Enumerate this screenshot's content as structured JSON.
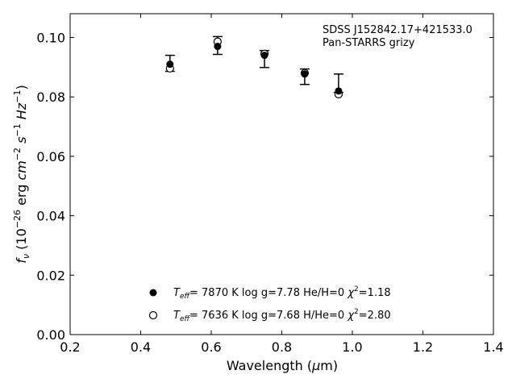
{
  "chart_data": {
    "type": "scatter",
    "xlabel": "Wavelength (μm)",
    "ylabel": "f_ν (10^-26 erg cm^-2 s^-1 Hz^-1)",
    "xlim": [
      0.2,
      1.4
    ],
    "ylim": [
      0.0,
      0.108
    ],
    "xticks": [
      "0.2",
      "0.4",
      "0.6",
      "0.8",
      "1.0",
      "1.2",
      "1.4"
    ],
    "yticks": [
      "0.00",
      "0.02",
      "0.04",
      "0.06",
      "0.08",
      "0.10"
    ],
    "grid": false,
    "annotation": [
      "SDSS J152842.17+421533.0",
      "Pan-STARRS grizy"
    ],
    "observed": {
      "x": [
        0.483,
        0.618,
        0.751,
        0.865,
        0.961
      ],
      "y_upper": [
        0.094,
        0.1003,
        0.0956,
        0.0894,
        0.0877
      ],
      "y_lower": [
        0.0886,
        0.0943,
        0.0899,
        0.0842,
        0.0815
      ]
    },
    "series": [
      {
        "marker": "filled-circle",
        "x": [
          0.483,
          0.618,
          0.751,
          0.865,
          0.961
        ],
        "y": [
          0.091,
          0.097,
          0.094,
          0.0877,
          0.082
        ]
      },
      {
        "marker": "open-circle",
        "x": [
          0.483,
          0.618,
          0.751,
          0.865,
          0.961
        ],
        "y": [
          0.0896,
          0.0986,
          0.0945,
          0.088,
          0.0809
        ]
      }
    ],
    "legend": [
      {
        "teff": "7870 K",
        "logg": "log g=7.78",
        "comp": "He/H=0",
        "chi2": "=1.18"
      },
      {
        "teff": "7636 K",
        "logg": "log g=7.68",
        "comp": "H/He=0",
        "chi2": "=2.80"
      }
    ],
    "legend_placement": "bottom-center"
  }
}
